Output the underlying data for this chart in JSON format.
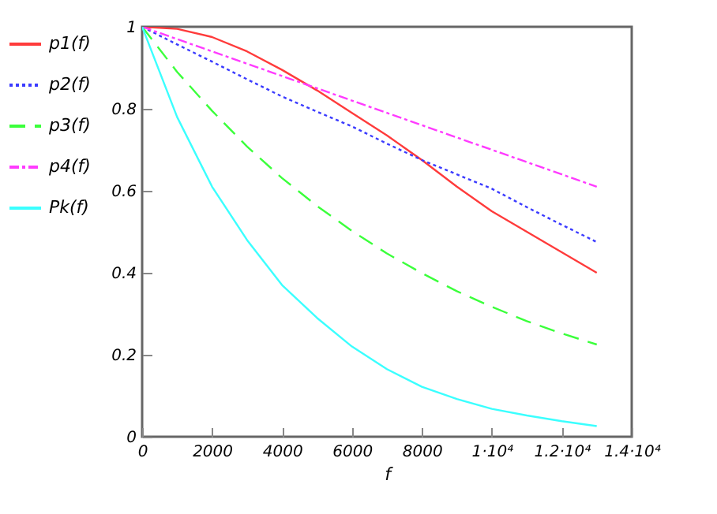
{
  "chart_data": {
    "type": "line",
    "xlabel": "f",
    "x": [
      0,
      1000,
      2000,
      3000,
      4000,
      5000,
      6000,
      7000,
      8000,
      9000,
      10000,
      11000,
      12000,
      13000
    ],
    "series": [
      {
        "name": "p1(f)",
        "color": "#ff3b3b",
        "line_style": "solid",
        "values": [
          1,
          0.995,
          0.975,
          0.94,
          0.895,
          0.845,
          0.79,
          0.735,
          0.675,
          0.61,
          0.55,
          0.5,
          0.45,
          0.4
        ]
      },
      {
        "name": "p2(f)",
        "color": "#3b3bff",
        "line_style": "dotted",
        "values": [
          1,
          0.957,
          0.915,
          0.872,
          0.83,
          0.793,
          0.757,
          0.715,
          0.675,
          0.64,
          0.605,
          0.56,
          0.517,
          0.475
        ]
      },
      {
        "name": "p3(f)",
        "color": "#3bff3b",
        "line_style": "dashed",
        "values": [
          1,
          0.89,
          0.795,
          0.708,
          0.631,
          0.563,
          0.502,
          0.447,
          0.399,
          0.355,
          0.317,
          0.282,
          0.252,
          0.225
        ]
      },
      {
        "name": "p4(f)",
        "color": "#ff3bff",
        "line_style": "dashdot",
        "values": [
          1,
          0.97,
          0.94,
          0.91,
          0.88,
          0.85,
          0.82,
          0.79,
          0.76,
          0.73,
          0.7,
          0.67,
          0.64,
          0.61
        ]
      },
      {
        "name": "Pk(f)",
        "color": "#3bffff",
        "line_style": "solid",
        "values": [
          1,
          0.78,
          0.61,
          0.48,
          0.37,
          0.29,
          0.22,
          0.165,
          0.122,
          0.092,
          0.068,
          0.052,
          0.038,
          0.026
        ]
      }
    ],
    "xlim": [
      0,
      14000
    ],
    "xticks": [
      0,
      2000,
      4000,
      6000,
      8000,
      {
        "value": 10000,
        "label": "1·10⁴"
      },
      {
        "value": 12000,
        "label": "1.2·10⁴"
      },
      {
        "value": 14000,
        "label": "1.4·10⁴"
      }
    ],
    "ylim": [
      0,
      1
    ],
    "yticks": [
      0,
      0.2,
      0.4,
      0.6,
      0.8,
      1
    ],
    "grid": false,
    "legend": "left"
  }
}
